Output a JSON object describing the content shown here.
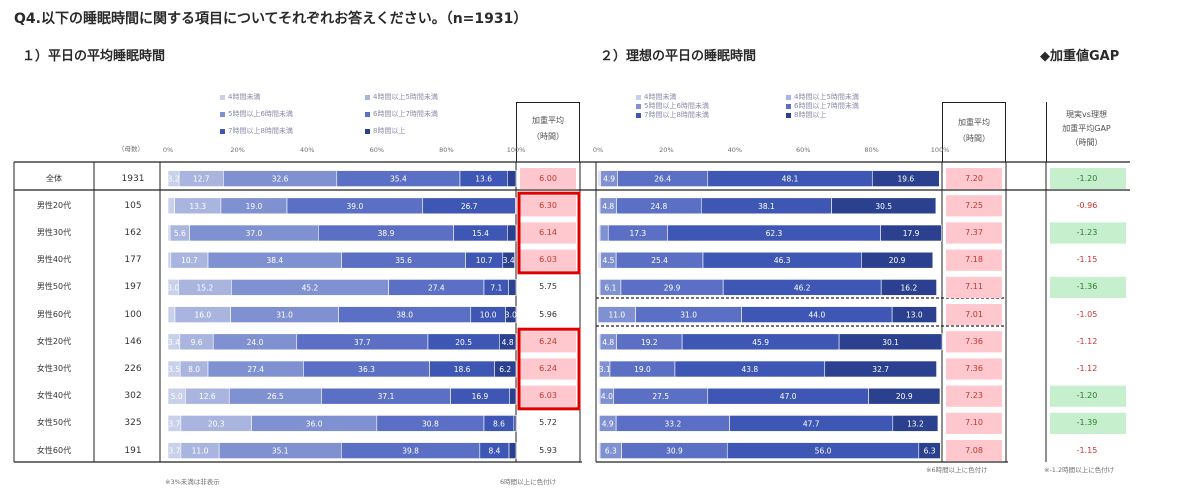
{
  "title": "Q4.以下の睡眠時間に関する項目についてそれぞれお答えください。（n=1931）",
  "section1": {
    "title": "１）平日の平均睡眠時間"
  },
  "section2": {
    "title": "２）理想の平日の睡眠時間"
  },
  "section3": {
    "title": "◆加重値GAP"
  },
  "n_header": "（母数）",
  "wa_header": {
    "line1": "加重平均",
    "line2": "（時間）"
  },
  "gap_header": {
    "line1": "現実vs理想",
    "line2": "加重平均GAP",
    "line3": "（時間）"
  },
  "legend": [
    "4時間未満",
    "4時間以上5時間未満",
    "5時間以上6時間未満",
    "6時間以上7時間未満",
    "7時間以上8時間未満",
    "8時間以上"
  ],
  "colors": [
    "#c9d0ea",
    "#aab5df",
    "#8091d2",
    "#5b70c4",
    "#3e56b4",
    "#2b418f"
  ],
  "highlight_colors": {
    "pink": "#ffc7ce",
    "green": "#c6efce",
    "red_box": "#e00000",
    "neg_red": "#d23030"
  },
  "x_ticks": [
    "0%",
    "20%",
    "40%",
    "60%",
    "80%",
    "100%"
  ],
  "footnotes": {
    "left": "※3%未満は非表示",
    "mid": "6時間以上に色付け",
    "right2": "※6時間以上に色付け",
    "right3": "※-1.2時間以上に色付け"
  },
  "chart_data": [
    {
      "type": "bar",
      "title": "１）平日の平均睡眠時間",
      "stacked": true,
      "orientation": "horizontal",
      "unit": "%",
      "categories": [
        "全体",
        "男性20代",
        "男性30代",
        "男性40代",
        "男性50代",
        "男性60代",
        "女性20代",
        "女性30代",
        "女性40代",
        "女性50代",
        "女性60代"
      ],
      "n": [
        1931,
        105,
        162,
        177,
        197,
        100,
        146,
        226,
        302,
        325,
        191
      ],
      "series": [
        {
          "name": "4時間未満",
          "values": [
            3.2,
            1.9,
            0.6,
            0.8,
            3.0,
            2.0,
            3.4,
            3.5,
            5.0,
            3.7,
            3.7
          ]
        },
        {
          "name": "4時間以上5時間未満",
          "values": [
            12.7,
            13.3,
            5.6,
            10.7,
            15.2,
            16.0,
            9.6,
            8.0,
            12.6,
            20.3,
            11.0
          ]
        },
        {
          "name": "5時間以上6時間未満",
          "values": [
            32.6,
            19.0,
            37.0,
            38.4,
            45.2,
            31.0,
            24.0,
            27.4,
            26.5,
            36.0,
            35.1
          ]
        },
        {
          "name": "6時間以上7時間未満",
          "values": [
            35.4,
            39.0,
            38.9,
            35.6,
            27.4,
            38.0,
            37.7,
            36.3,
            37.1,
            30.8,
            39.8
          ]
        },
        {
          "name": "7時間以上8時間未満",
          "values": [
            13.6,
            26.7,
            15.4,
            10.7,
            7.1,
            10.0,
            20.5,
            18.6,
            16.9,
            8.6,
            8.4
          ]
        },
        {
          "name": "8時間以上",
          "values": [
            2.5,
            0.1,
            2.5,
            3.4,
            2.1,
            3.0,
            4.8,
            6.2,
            1.9,
            0.6,
            2.0
          ]
        }
      ],
      "labels_shown": [
        [
          "3.2",
          "12.7",
          "32.6",
          "35.4",
          "13.6",
          ""
        ],
        [
          "",
          "13.3",
          "19.0",
          "39.0",
          "26.7",
          ""
        ],
        [
          "",
          "5.6",
          "37.0",
          "38.9",
          "15.4",
          ""
        ],
        [
          "",
          "10.7",
          "38.4",
          "35.6",
          "10.7",
          "3.4"
        ],
        [
          "3.0",
          "15.2",
          "45.2",
          "27.4",
          "7.1",
          ""
        ],
        [
          "",
          "16.0",
          "31.0",
          "38.0",
          "10.0",
          "3.0"
        ],
        [
          "3.4",
          "9.6",
          "24.0",
          "37.7",
          "20.5",
          "4.8"
        ],
        [
          "3.5",
          "8.0",
          "27.4",
          "36.3",
          "18.6",
          "6.2"
        ],
        [
          "5.0",
          "12.6",
          "26.5",
          "37.1",
          "16.9",
          ""
        ],
        [
          "3.7",
          "20.3",
          "36.0",
          "30.8",
          "8.6",
          ""
        ],
        [
          "3.7",
          "11.0",
          "35.1",
          "39.8",
          "8.4",
          ""
        ]
      ],
      "weighted_avg": [
        "6.00",
        "6.30",
        "6.14",
        "6.03",
        "5.75",
        "5.96",
        "6.24",
        "6.24",
        "6.03",
        "5.72",
        "5.93"
      ],
      "weighted_highlight": [
        true,
        true,
        true,
        true,
        false,
        false,
        true,
        true,
        true,
        false,
        false
      ],
      "red_box_groups": [
        [
          1,
          3
        ],
        [
          6,
          8
        ]
      ]
    },
    {
      "type": "bar",
      "title": "２）理想の平日の睡眠時間",
      "stacked": true,
      "orientation": "horizontal",
      "unit": "%",
      "categories": [
        "全体",
        "男性20代",
        "男性30代",
        "男性40代",
        "男性50代",
        "男性60代",
        "女性20代",
        "女性30代",
        "女性40代",
        "女性50代",
        "女性60代"
      ],
      "series": [
        {
          "name": "4時間未満",
          "values": [
            0.4,
            0.3,
            0.3,
            0.4,
            0.3,
            0.0,
            0.3,
            0.2,
            0.3,
            0.2,
            0.3
          ]
        },
        {
          "name": "4時間以上5時間未満",
          "values": [
            0.4,
            0.3,
            0.3,
            0.4,
            0.3,
            0.0,
            0.3,
            0.2,
            0.3,
            0.2,
            0.3
          ]
        },
        {
          "name": "5時間以上6時間未満",
          "values": [
            4.9,
            4.8,
            2.4,
            4.5,
            6.1,
            11.0,
            4.8,
            3.1,
            4.0,
            4.9,
            6.3
          ]
        },
        {
          "name": "6時間以上7時間未満",
          "values": [
            26.4,
            24.8,
            17.3,
            25.4,
            29.9,
            31.0,
            19.2,
            19.0,
            27.5,
            33.2,
            30.9
          ]
        },
        {
          "name": "7時間以上8時間未満",
          "values": [
            48.1,
            38.1,
            62.3,
            46.3,
            46.2,
            44.0,
            45.9,
            43.8,
            47.0,
            47.7,
            56.0
          ]
        },
        {
          "name": "8時間以上",
          "values": [
            19.6,
            30.5,
            17.9,
            20.9,
            16.2,
            13.0,
            30.1,
            32.7,
            20.9,
            13.2,
            6.3
          ]
        }
      ],
      "labels_shown": [
        [
          "",
          "",
          "4.9",
          "26.4",
          "48.1",
          "19.6"
        ],
        [
          "",
          "",
          "4.8",
          "24.8",
          "38.1",
          "30.5"
        ],
        [
          "",
          "",
          "",
          "17.3",
          "62.3",
          "17.9"
        ],
        [
          "",
          "",
          "4.5",
          "25.4",
          "46.3",
          "20.9"
        ],
        [
          "",
          "",
          "6.1",
          "29.9",
          "46.2",
          "16.2"
        ],
        [
          "",
          "",
          "11.0",
          "31.0",
          "44.0",
          "13.0"
        ],
        [
          "",
          "",
          "4.8",
          "19.2",
          "45.9",
          "30.1"
        ],
        [
          "",
          "",
          "3.1",
          "19.0",
          "43.8",
          "32.7"
        ],
        [
          "",
          "",
          "4.0",
          "27.5",
          "47.0",
          "20.9"
        ],
        [
          "",
          "",
          "4.9",
          "33.2",
          "47.7",
          "13.2"
        ],
        [
          "",
          "",
          "6.3",
          "30.9",
          "56.0",
          "6.3"
        ]
      ],
      "weighted_avg": [
        "7.20",
        "7.25",
        "7.37",
        "7.18",
        "7.11",
        "7.01",
        "7.36",
        "7.36",
        "7.23",
        "7.10",
        "7.08"
      ],
      "weighted_highlight": [
        true,
        true,
        true,
        true,
        true,
        true,
        true,
        true,
        true,
        true,
        true
      ]
    }
  ],
  "gap": {
    "values": [
      "-1.20",
      "-0.96",
      "-1.23",
      "-1.15",
      "-1.36",
      "-1.05",
      "-1.12",
      "-1.12",
      "-1.20",
      "-1.39",
      "-1.15"
    ],
    "highlight": [
      true,
      false,
      true,
      false,
      true,
      false,
      false,
      false,
      true,
      true,
      false
    ]
  }
}
